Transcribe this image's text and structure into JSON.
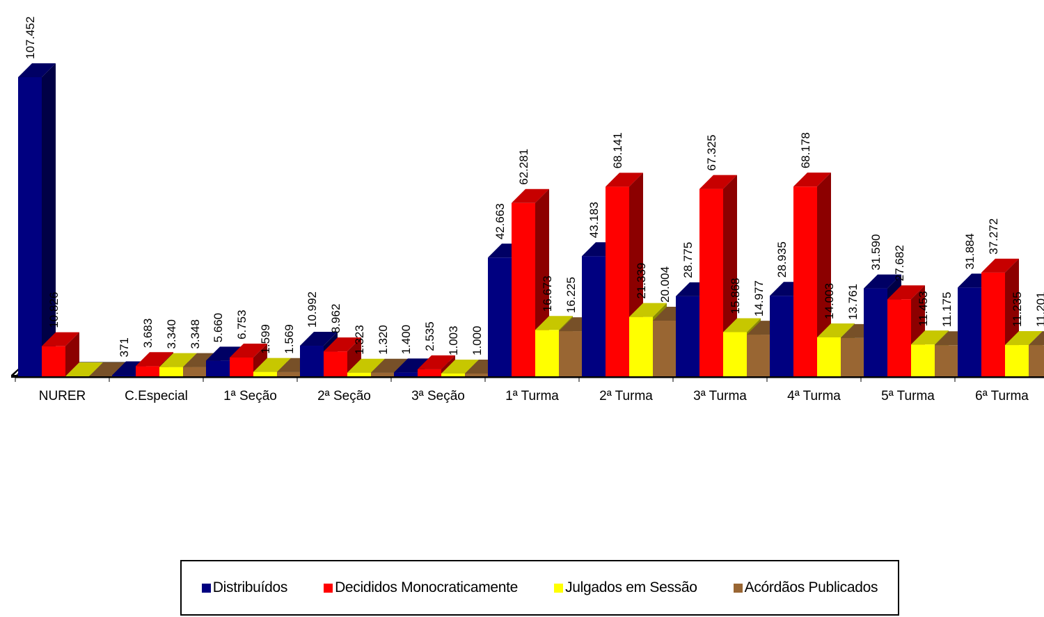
{
  "chart_data": {
    "type": "bar",
    "title": "",
    "xlabel": "",
    "ylabel": "",
    "ylim": [
      0,
      110000
    ],
    "grid": false,
    "legend_position": "bottom",
    "categories": [
      "NURER",
      "C.Especial",
      "1ª Seção",
      "2ª Seção",
      "3ª Seção",
      "1ª Turma",
      "2ª Turma",
      "3ª Turma",
      "4ª Turma",
      "5ª Turma",
      "6ª Turma"
    ],
    "series": [
      {
        "name": "Distribuídos",
        "color": "#000080",
        "values": [
          107452,
          371,
          5660,
          10992,
          1400,
          42663,
          43183,
          28775,
          28935,
          31590,
          31884
        ],
        "labels": [
          "107.452",
          "371",
          "5.660",
          "10.992",
          "1.400",
          "42.663",
          "43.183",
          "28.775",
          "28.935",
          "31.590",
          "31.884"
        ]
      },
      {
        "name": "Decididos Monocraticamente",
        "color": "#ff0000",
        "values": [
          10826,
          3683,
          6753,
          8962,
          2535,
          62281,
          68141,
          67325,
          68178,
          27682,
          37272
        ],
        "labels": [
          "10.826",
          "3.683",
          "6.753",
          "8.962",
          "2.535",
          "62.281",
          "68.141",
          "67.325",
          "68.178",
          "27.682",
          "37.272"
        ]
      },
      {
        "name": "Julgados em Sessão",
        "color": "#ffff00",
        "values": [
          0,
          3340,
          1599,
          1323,
          1003,
          16673,
          21339,
          15868,
          14003,
          11453,
          11235
        ],
        "labels": [
          "",
          "3.340",
          "1.599",
          "1.323",
          "1.003",
          "16.673",
          "21.339",
          "15.868",
          "14.003",
          "11.453",
          "11.235"
        ]
      },
      {
        "name": "Acórdãos Publicados",
        "color": "#996633",
        "values": [
          0,
          3348,
          1569,
          1320,
          1000,
          16225,
          20004,
          14977,
          13761,
          11175,
          11201
        ],
        "labels": [
          "",
          "3.348",
          "1.569",
          "1.320",
          "1.000",
          "16.225",
          "20.004",
          "14.977",
          "13.761",
          "11.175",
          "11.201"
        ]
      }
    ]
  }
}
